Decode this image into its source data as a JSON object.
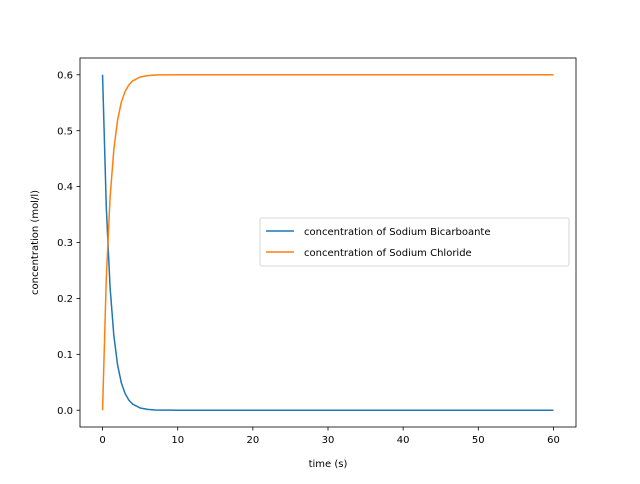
{
  "chart_data": {
    "type": "line",
    "title": "",
    "xlabel": "time (s)",
    "ylabel": "concentration (mol/l)",
    "xlim": [
      -3,
      63
    ],
    "ylim": [
      -0.03,
      0.63
    ],
    "x_ticks": [
      "0",
      "10",
      "20",
      "30",
      "40",
      "50",
      "60"
    ],
    "y_ticks": [
      "0.0",
      "0.1",
      "0.2",
      "0.3",
      "0.4",
      "0.5",
      "0.6"
    ],
    "grid": false,
    "legend_position": "center-right",
    "series": [
      {
        "name": "concentration of Sodium Bicarboante",
        "color": "#1f77b4",
        "x": [
          0,
          0.5,
          1,
          1.5,
          2,
          2.5,
          3,
          3.5,
          4,
          5,
          6,
          7,
          8,
          9,
          10,
          15,
          20,
          30,
          40,
          50,
          60
        ],
        "y": [
          0.6,
          0.363,
          0.22,
          0.134,
          0.081,
          0.049,
          0.03,
          0.018,
          0.011,
          0.004,
          0.0015,
          0.0005,
          0.0002,
          0.0001,
          0.0,
          0.0,
          0.0,
          0.0,
          0.0,
          0.0,
          0.0
        ]
      },
      {
        "name": "concentration of Sodium Chloride",
        "color": "#ff7f0e",
        "x": [
          0,
          0.5,
          1,
          1.5,
          2,
          2.5,
          3,
          3.5,
          4,
          5,
          6,
          7,
          8,
          9,
          10,
          15,
          20,
          30,
          40,
          50,
          60
        ],
        "y": [
          0.0,
          0.237,
          0.38,
          0.466,
          0.519,
          0.551,
          0.57,
          0.582,
          0.589,
          0.596,
          0.5985,
          0.5995,
          0.5998,
          0.5999,
          0.6,
          0.6,
          0.6,
          0.6,
          0.6,
          0.6,
          0.6
        ]
      }
    ]
  }
}
